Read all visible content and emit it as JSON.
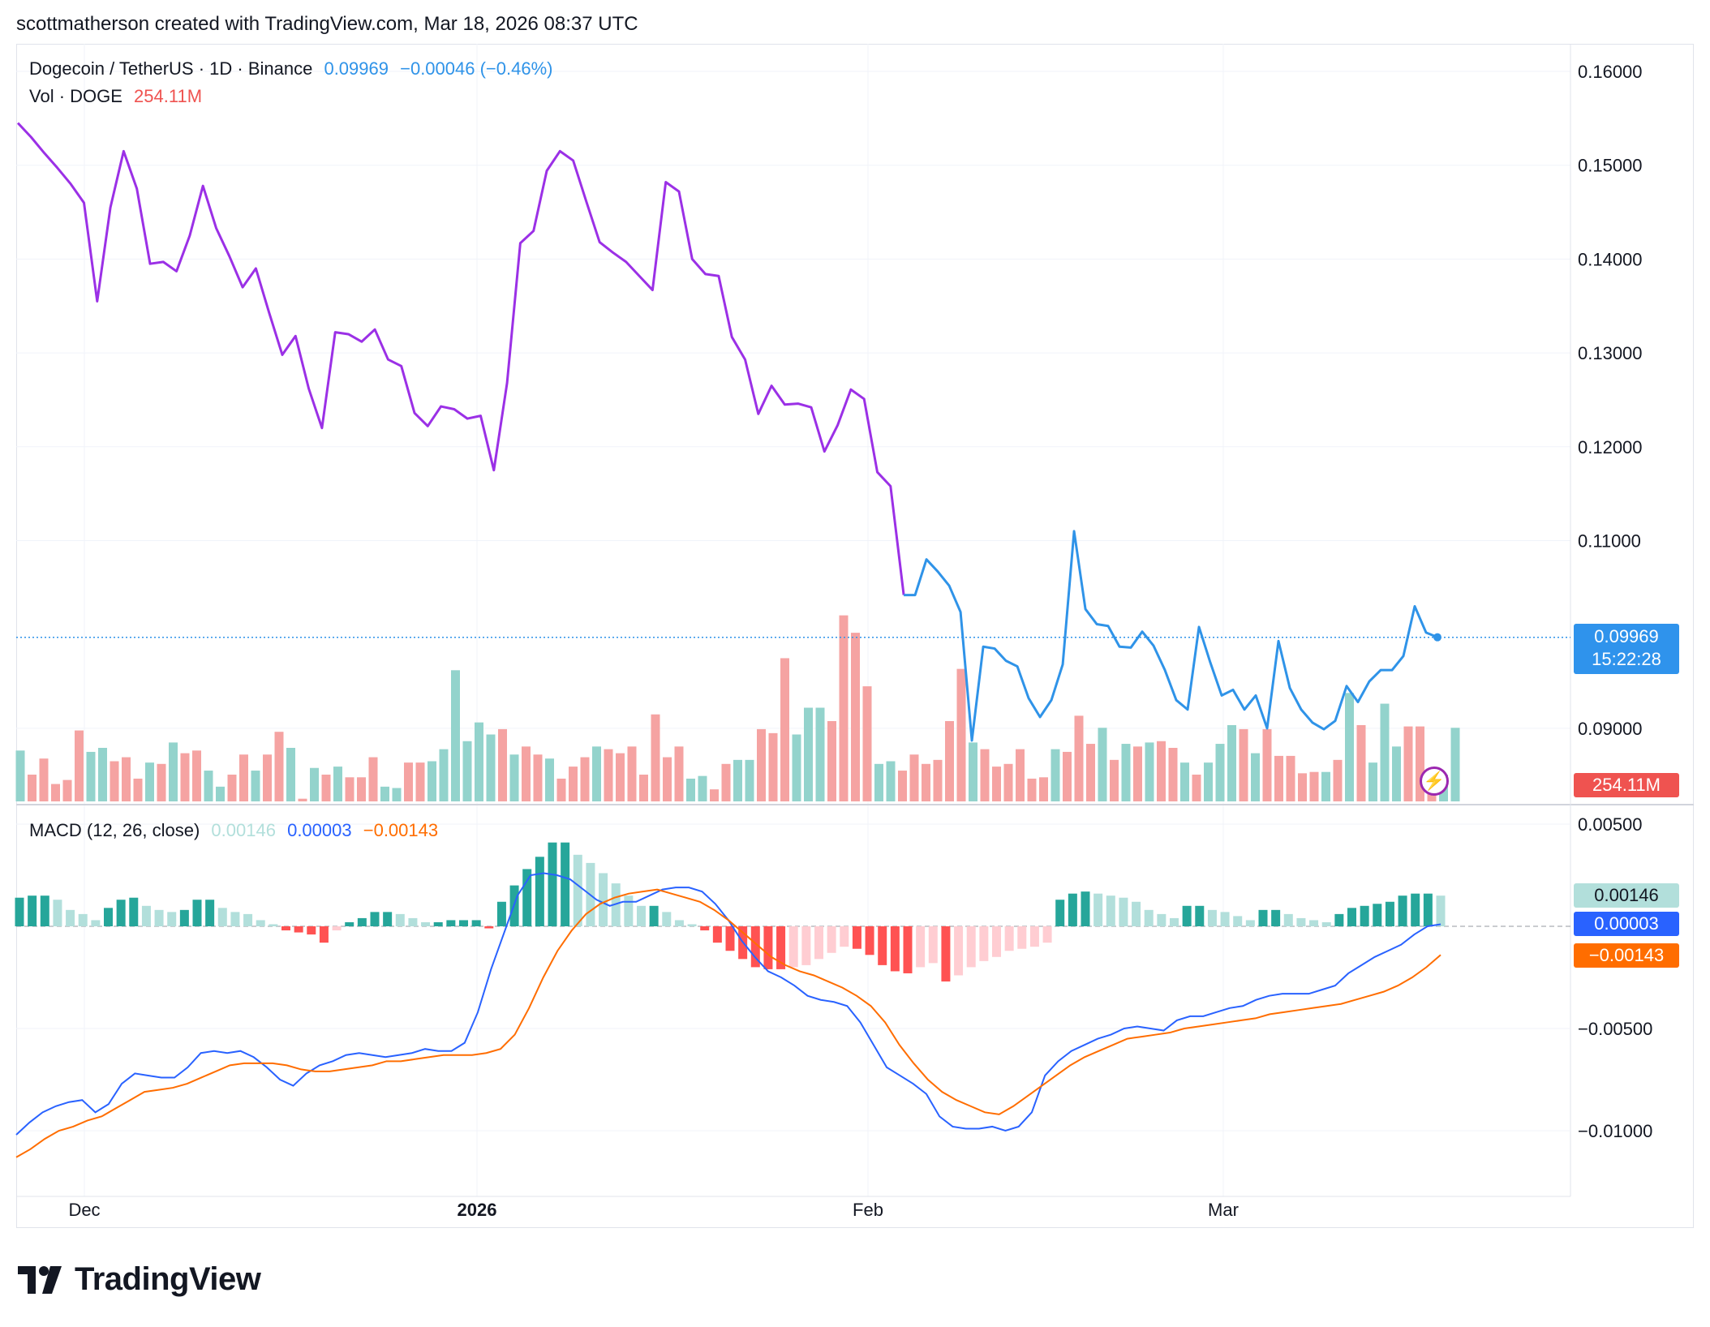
{
  "header": {
    "credit": "scottmatherson created with TradingView.com, Mar 18, 2026 08:37 UTC"
  },
  "legend": {
    "symbol": "Dogecoin / TetherUS · 1D · Binance",
    "last": "0.09969",
    "change": "−0.00046 (−0.46%)",
    "vol_label": "Vol · DOGE",
    "vol_value": "254.11M",
    "macd_label": "MACD (12, 26, close)",
    "macd_hist": "0.00146",
    "macd_line": "0.00003",
    "macd_signal": "−0.00143"
  },
  "badges": {
    "price": "0.09969",
    "countdown": "15:22:28",
    "volume": "254.11M",
    "macd_hist": "0.00146",
    "macd_line": "0.00003",
    "macd_signal": "−0.00143"
  },
  "colors": {
    "price_line_purple": "#9b30e6",
    "price_line_blue": "#2f93e8",
    "vol_up": "#93d3cc",
    "vol_down": "#f5a3a2",
    "macd_line": "#2962ff",
    "signal_line": "#ff6d00",
    "hist_up_strong": "#26a69a",
    "hist_up_weak": "#b2dfdb",
    "hist_down_strong": "#ff5252",
    "hist_down_weak": "#ffcdd2"
  },
  "brand": {
    "logo_text": "TradingView",
    "logo_icon": "tradingview-logo-icon",
    "alert_icon": "lightning-icon"
  },
  "chart_data": [
    {
      "type": "line",
      "title": "Dogecoin / TetherUS · 1D · Binance",
      "x_ticks": [
        "Dec",
        "2026",
        "Feb",
        "Mar"
      ],
      "y_ticks": [
        "0.16000",
        "0.15000",
        "0.14000",
        "0.13000",
        "0.12000",
        "0.11000",
        "0.09000"
      ],
      "ylim": [
        0.0835,
        0.1615
      ],
      "series": [
        {
          "values": [
            0.1545,
            0.153,
            0.1513,
            0.1497,
            0.148,
            0.146,
            0.1355,
            0.1455,
            0.1515,
            0.1475,
            0.1395,
            0.1397,
            0.1387,
            0.1425,
            0.1478,
            0.1433,
            0.1403,
            0.137,
            0.139,
            0.1343,
            0.1298,
            0.1318,
            0.1262,
            0.122,
            0.1322,
            0.132,
            0.1312,
            0.1325,
            0.1293,
            0.1286,
            0.1236,
            0.1222,
            0.1243,
            0.124,
            0.123,
            0.1233,
            0.1175,
            0.1268,
            0.1417,
            0.143,
            0.1494,
            0.1515,
            0.1505,
            0.1461,
            0.1418,
            0.1407,
            0.1397,
            0.1382,
            0.1367,
            0.1482,
            0.1472,
            0.14,
            0.1384,
            0.1382,
            0.1317,
            0.1293,
            0.1235,
            0.1265,
            0.1245,
            0.1246,
            0.1242,
            0.1195,
            0.1223,
            0.1261,
            0.1251,
            0.1173,
            0.1158,
            0.1042
          ]
        },
        {
          "values": [
            0.1042,
            0.1042,
            0.108,
            0.1067,
            0.1052,
            0.1024,
            0.0887,
            0.0987,
            0.0985,
            0.0972,
            0.0966,
            0.0932,
            0.0912,
            0.093,
            0.0968,
            0.111,
            0.1027,
            0.1011,
            0.1009,
            0.0987,
            0.0986,
            0.1003,
            0.0988,
            0.0962,
            0.093,
            0.092,
            0.1008,
            0.097,
            0.0935,
            0.0941,
            0.092,
            0.0935,
            0.09,
            0.0993,
            0.0943,
            0.092,
            0.0906,
            0.0899,
            0.0908,
            0.0945,
            0.0928,
            0.095,
            0.0962,
            0.0962,
            0.0977,
            0.103,
            0.1002,
            0.0997
          ]
        }
      ]
    },
    {
      "type": "bar",
      "title": "Vol · DOGE",
      "series": [
        {
          "name": "volume_relative",
          "values": [
            0.38,
            0.2,
            0.32,
            0.13,
            0.16,
            0.53,
            0.37,
            0.4,
            0.3,
            0.33,
            0.17,
            0.29,
            0.28,
            0.44,
            0.36,
            0.38,
            0.23,
            0.11,
            0.2,
            0.35,
            0.23,
            0.35,
            0.52,
            0.4,
            0.02,
            0.25,
            0.2,
            0.26,
            0.18,
            0.18,
            0.33,
            0.11,
            0.1,
            0.29,
            0.29,
            0.3,
            0.39,
            0.98,
            0.45,
            0.59,
            0.5,
            0.54,
            0.35,
            0.41,
            0.35,
            0.32,
            0.17,
            0.26,
            0.33,
            0.41,
            0.39,
            0.36,
            0.41,
            0.2,
            0.65,
            0.33,
            0.41,
            0.17,
            0.19,
            0.09,
            0.28,
            0.31,
            0.31,
            0.54,
            0.51,
            1.07,
            0.5,
            0.7,
            0.7,
            0.6,
            1.39,
            1.26,
            0.86,
            0.28,
            0.3,
            0.23,
            0.35,
            0.28,
            0.31,
            0.6,
            0.99,
            0.44,
            0.39,
            0.26,
            0.28,
            0.39,
            0.17,
            0.18,
            0.39,
            0.37,
            0.64,
            0.43,
            0.55,
            0.31,
            0.43,
            0.41,
            0.44,
            0.45,
            0.4,
            0.29,
            0.2,
            0.29,
            0.43,
            0.57,
            0.54,
            0.36,
            0.54,
            0.34,
            0.34,
            0.21,
            0.22,
            0.22,
            0.31,
            0.81,
            0.57,
            0.29,
            0.73,
            0.41,
            0.56,
            0.56,
            0.13,
            0.2,
            0.55
          ]
        },
        {
          "name": "direction_up",
          "values": [
            1,
            0,
            0,
            0,
            0,
            0,
            1,
            1,
            0,
            0,
            0,
            1,
            0,
            1,
            0,
            0,
            1,
            1,
            0,
            0,
            1,
            0,
            0,
            1,
            0,
            1,
            0,
            1,
            0,
            0,
            0,
            1,
            1,
            0,
            0,
            1,
            1,
            1,
            1,
            1,
            1,
            0,
            1,
            0,
            0,
            1,
            0,
            0,
            0,
            1,
            0,
            0,
            0,
            0,
            0,
            0,
            0,
            1,
            1,
            0,
            0,
            1,
            1,
            0,
            0,
            0,
            1,
            1,
            1,
            0,
            0,
            0,
            0,
            1,
            1,
            0,
            0,
            0,
            0,
            0,
            0,
            1,
            0,
            0,
            0,
            0,
            0,
            0,
            1,
            0,
            0,
            0,
            1,
            0,
            1,
            0,
            1,
            0,
            0,
            1,
            0,
            1,
            1,
            1,
            0,
            1,
            0,
            0,
            0,
            0,
            0,
            1,
            0,
            1,
            0,
            1,
            1,
            1,
            0,
            0,
            0,
            1,
            1
          ]
        }
      ]
    },
    {
      "type": "bar",
      "title": "MACD (12, 26, close)",
      "y_ticks": [
        "0.00500",
        "−0.00500",
        "−0.01000"
      ],
      "ylim": [
        -0.0126,
        0.0058
      ],
      "series": [
        {
          "name": "histogram",
          "values": [
            0.0014,
            0.0015,
            0.0015,
            0.0013,
            0.0008,
            0.0006,
            0.0003,
            0.0009,
            0.0013,
            0.0014,
            0.001,
            0.0008,
            0.0007,
            0.0008,
            0.0013,
            0.0013,
            0.0009,
            0.0007,
            0.0006,
            0.0003,
            0.0001,
            -0.0002,
            -0.0003,
            -0.0004,
            -0.0008,
            -0.0002,
            0.0002,
            0.0004,
            0.0007,
            0.0007,
            0.0006,
            0.0004,
            0.0002,
            0.0002,
            0.0003,
            0.0003,
            0.0003,
            -0.0001,
            0.0012,
            0.002,
            0.0028,
            0.0034,
            0.0041,
            0.0041,
            0.0035,
            0.0031,
            0.0026,
            0.0021,
            0.0015,
            0.001,
            0.001,
            0.0007,
            0.0003,
            0.0001,
            -0.0002,
            -0.0008,
            -0.0012,
            -0.0016,
            -0.002,
            -0.0021,
            -0.0021,
            -0.002,
            -0.0019,
            -0.0016,
            -0.0013,
            -0.001,
            -0.0011,
            -0.0014,
            -0.0019,
            -0.0022,
            -0.0023,
            -0.002,
            -0.0018,
            -0.0027,
            -0.0024,
            -0.002,
            -0.0017,
            -0.0015,
            -0.0012,
            -0.0011,
            -0.001,
            -0.0008,
            0.0013,
            0.0016,
            0.0017,
            0.0016,
            0.0015,
            0.0014,
            0.0012,
            0.0008,
            0.0006,
            0.0004,
            0.001,
            0.001,
            0.0008,
            0.0007,
            0.0005,
            0.0003,
            0.0008,
            0.0008,
            0.0006,
            0.0004,
            0.0003,
            0.0002,
            0.0006,
            0.0009,
            0.001,
            0.0011,
            0.0012,
            0.0015,
            0.0016,
            0.0016,
            0.0015
          ]
        },
        {
          "name": "macd_line",
          "values": [
            -0.0102,
            -0.0096,
            -0.0091,
            -0.0088,
            -0.0086,
            -0.0085,
            -0.0091,
            -0.0087,
            -0.0077,
            -0.0072,
            -0.0073,
            -0.0074,
            -0.0074,
            -0.0069,
            -0.0062,
            -0.0061,
            -0.0062,
            -0.0061,
            -0.0064,
            -0.0069,
            -0.0075,
            -0.0078,
            -0.0072,
            -0.0068,
            -0.0066,
            -0.0063,
            -0.0062,
            -0.0063,
            -0.0064,
            -0.0063,
            -0.0062,
            -0.006,
            -0.0061,
            -0.0061,
            -0.0057,
            -0.0042,
            -0.0021,
            -0.0003,
            0.0015,
            0.0025,
            0.0026,
            0.0025,
            0.0023,
            0.0018,
            0.0013,
            0.001,
            0.0012,
            0.0012,
            0.0015,
            0.0018,
            0.0019,
            0.0019,
            0.0017,
            0.0011,
            0.0003,
            -0.0007,
            -0.0015,
            -0.0022,
            -0.0025,
            -0.0029,
            -0.0034,
            -0.0036,
            -0.0037,
            -0.0039,
            -0.0047,
            -0.0058,
            -0.0069,
            -0.0073,
            -0.0077,
            -0.0082,
            -0.0093,
            -0.0098,
            -0.0099,
            -0.0099,
            -0.0098,
            -0.01,
            -0.0098,
            -0.0091,
            -0.0073,
            -0.0066,
            -0.0061,
            -0.0058,
            -0.0055,
            -0.0053,
            -0.005,
            -0.0049,
            -0.005,
            -0.0051,
            -0.0046,
            -0.0044,
            -0.0044,
            -0.0042,
            -0.004,
            -0.0039,
            -0.0036,
            -0.0034,
            -0.0033,
            -0.0033,
            -0.0033,
            -0.0031,
            -0.0029,
            -0.0023,
            -0.0019,
            -0.0015,
            -0.0012,
            -0.0009,
            -0.0004,
            0.0,
            0.0001
          ]
        },
        {
          "name": "signal_line",
          "values": [
            -0.0113,
            -0.0109,
            -0.0104,
            -0.01,
            -0.0098,
            -0.0095,
            -0.0093,
            -0.0089,
            -0.0085,
            -0.0081,
            -0.008,
            -0.0079,
            -0.0077,
            -0.0074,
            -0.0071,
            -0.0068,
            -0.0067,
            -0.0067,
            -0.0067,
            -0.0068,
            -0.007,
            -0.0071,
            -0.0071,
            -0.007,
            -0.0069,
            -0.0068,
            -0.0066,
            -0.0066,
            -0.0065,
            -0.0064,
            -0.0063,
            -0.0063,
            -0.0063,
            -0.0062,
            -0.006,
            -0.0053,
            -0.004,
            -0.0025,
            -0.0012,
            -0.0002,
            0.0006,
            0.0011,
            0.0014,
            0.0016,
            0.0017,
            0.0018,
            0.0016,
            0.0014,
            0.0012,
            0.0008,
            0.0003,
            -0.0003,
            -0.0009,
            -0.0015,
            -0.0019,
            -0.0022,
            -0.0024,
            -0.0027,
            -0.003,
            -0.0034,
            -0.0039,
            -0.0047,
            -0.0058,
            -0.0067,
            -0.0075,
            -0.0081,
            -0.0085,
            -0.0088,
            -0.0091,
            -0.0092,
            -0.0088,
            -0.0083,
            -0.0078,
            -0.0073,
            -0.0068,
            -0.0064,
            -0.0061,
            -0.0058,
            -0.0055,
            -0.0054,
            -0.0053,
            -0.0052,
            -0.005,
            -0.0049,
            -0.0048,
            -0.0047,
            -0.0046,
            -0.0045,
            -0.0043,
            -0.0042,
            -0.0041,
            -0.004,
            -0.0039,
            -0.0038,
            -0.0036,
            -0.0034,
            -0.0032,
            -0.0029,
            -0.0025,
            -0.002,
            -0.0014
          ]
        }
      ]
    }
  ]
}
